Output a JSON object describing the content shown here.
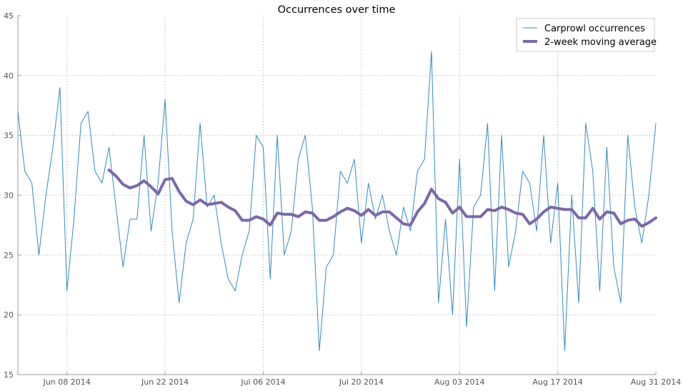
{
  "chart_data": {
    "type": "line",
    "title": "Occurrences over time",
    "xlabel": "",
    "ylabel": "",
    "x_start": "2014-06-01",
    "x_end": "2014-08-31",
    "xlim": [
      "2014-06-01",
      "2014-08-31"
    ],
    "ylim": [
      15,
      45
    ],
    "y_ticks": [
      15,
      20,
      25,
      30,
      35,
      40,
      45
    ],
    "x_ticks": [
      {
        "date": "2014-06-08",
        "label": "Jun 08 2014"
      },
      {
        "date": "2014-06-22",
        "label": "Jun 22 2014"
      },
      {
        "date": "2014-07-06",
        "label": "Jul 06 2014"
      },
      {
        "date": "2014-07-20",
        "label": "Jul 20 2014"
      },
      {
        "date": "2014-08-03",
        "label": "Aug 03 2014"
      },
      {
        "date": "2014-08-17",
        "label": "Aug 17 2014"
      },
      {
        "date": "2014-08-31",
        "label": "Aug 31 2014"
      }
    ],
    "grid": true,
    "legend_position": "top-right",
    "series": [
      {
        "name": "Carprowl occurrences",
        "color": "#348abd",
        "style": "thin",
        "x_start": "2014-06-01",
        "values": [
          37,
          32,
          31,
          25,
          30,
          34,
          39,
          22,
          28,
          36,
          37,
          32,
          31,
          34,
          29,
          24,
          28,
          28,
          35,
          27,
          31,
          38,
          27,
          21,
          26,
          28,
          36,
          29,
          30,
          26,
          23,
          22,
          25,
          27,
          35,
          34,
          23,
          35,
          25,
          27,
          33,
          35,
          29,
          17,
          24,
          25,
          32,
          31,
          33,
          26,
          31,
          28,
          30,
          27,
          25,
          29,
          27,
          32,
          33,
          42,
          21,
          28,
          20,
          33,
          19,
          29,
          30,
          36,
          22,
          35,
          24,
          27,
          32,
          31,
          27,
          35,
          26,
          31,
          17,
          30,
          21,
          36,
          32,
          22,
          34,
          24,
          21,
          35,
          29,
          26,
          30,
          36
        ]
      },
      {
        "name": "2-week moving average",
        "color": "#7a68a6",
        "style": "thick",
        "x_start": "2014-06-14",
        "values": [
          32.1,
          31.6,
          30.9,
          30.6,
          30.8,
          31.2,
          30.7,
          30.1,
          31.3,
          31.4,
          30.3,
          29.5,
          29.2,
          29.6,
          29.2,
          29.3,
          29.4,
          29.0,
          28.7,
          27.9,
          27.9,
          28.2,
          28.0,
          27.5,
          28.5,
          28.4,
          28.4,
          28.2,
          28.6,
          28.5,
          27.9,
          27.9,
          28.2,
          28.6,
          28.9,
          28.7,
          28.3,
          28.8,
          28.3,
          28.6,
          28.6,
          28.1,
          27.6,
          27.5,
          28.6,
          29.3,
          30.5,
          29.7,
          29.4,
          28.5,
          29.0,
          28.2,
          28.2,
          28.2,
          28.8,
          28.7,
          29.0,
          28.8,
          28.5,
          28.4,
          27.6,
          28.0,
          28.6,
          29.0,
          28.9,
          28.8,
          28.8,
          28.1,
          28.1,
          28.9,
          28.0,
          28.6,
          28.5,
          27.6,
          27.9,
          28.0,
          27.4,
          27.7,
          28.1
        ]
      }
    ]
  }
}
